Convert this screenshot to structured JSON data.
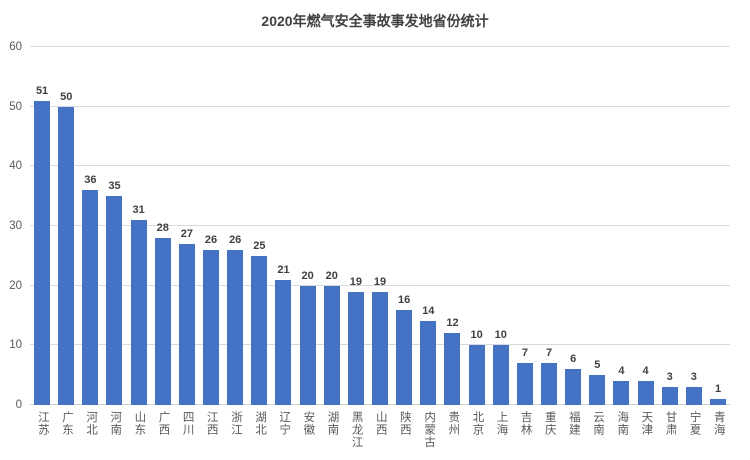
{
  "title": "2020年燃气安全事故事发地省份统计",
  "colors": {
    "bar": "#4472C4",
    "title_text": "#404040",
    "value_label_text": "#404040",
    "axis_text": "#595959",
    "gridline": "#D9D9D9",
    "axis_line": "#CFCFCF",
    "background": "#FFFFFF"
  },
  "chart_data": {
    "type": "bar",
    "title": "2020年燃气安全事故事发地省份统计",
    "xlabel": "",
    "ylabel": "",
    "categories": [
      "江苏",
      "广东",
      "河北",
      "河南",
      "山东",
      "广西",
      "四川",
      "江西",
      "浙江",
      "湖北",
      "辽宁",
      "安徽",
      "湖南",
      "黑龙江",
      "山西",
      "陕西",
      "内蒙古",
      "贵州",
      "北京",
      "上海",
      "吉林",
      "重庆",
      "福建",
      "云南",
      "海南",
      "天津",
      "甘肃",
      "宁夏",
      "青海"
    ],
    "values": [
      51,
      50,
      36,
      35,
      31,
      28,
      27,
      26,
      26,
      25,
      21,
      20,
      20,
      19,
      19,
      16,
      14,
      12,
      10,
      10,
      7,
      7,
      6,
      5,
      4,
      4,
      3,
      3,
      1
    ],
    "ylim": [
      0,
      60
    ],
    "yticks": [
      0,
      10,
      20,
      30,
      40,
      50,
      60
    ],
    "grid": true,
    "legend": false,
    "data_labels": true,
    "x_tick_orientation": "vertical-stacked"
  }
}
